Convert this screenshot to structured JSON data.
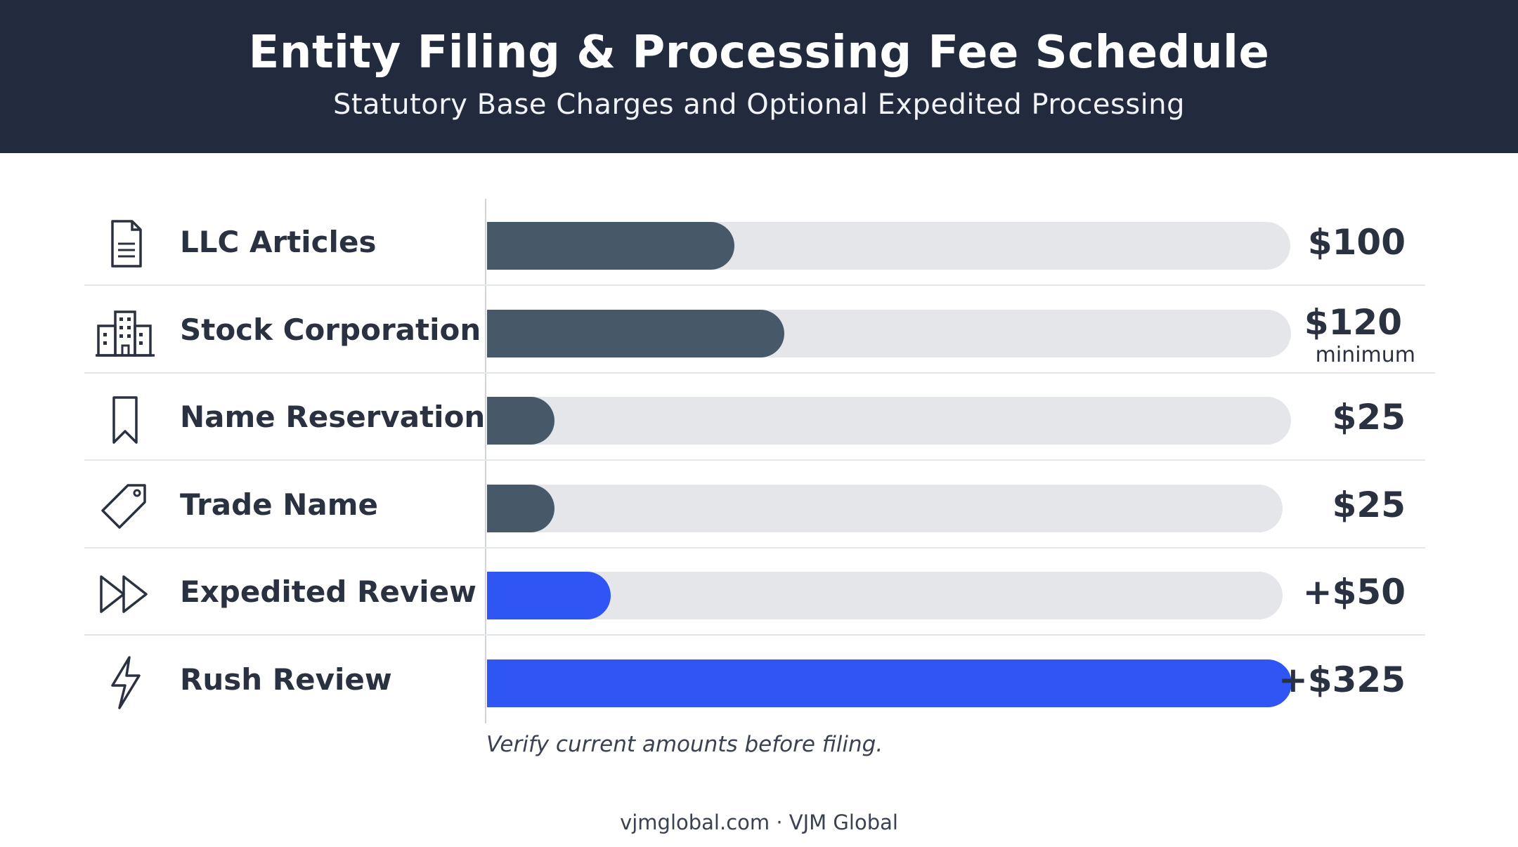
{
  "header": {
    "title": "Entity Filing & Processing Fee Schedule",
    "subtitle": "Statutory Base Charges and Optional Expedited Processing"
  },
  "colors": {
    "header_bg": "#222b3e",
    "base_bar": "#475869",
    "expedited_bar": "#2f55f5",
    "track": "#e4e6ea"
  },
  "chart_data": {
    "type": "bar",
    "orientation": "horizontal",
    "categories": [
      "LLC Articles",
      "Stock Corporation",
      "Name Reservation",
      "Trade Name",
      "Expedited Review",
      "Rush Review"
    ],
    "values": [
      100,
      120,
      25,
      25,
      50,
      325
    ],
    "value_labels": [
      "$100",
      "$120",
      "$25",
      "$25",
      "+$50",
      "+$325"
    ],
    "notes": [
      "",
      "minimum",
      "",
      "",
      "",
      ""
    ],
    "groups": [
      "base",
      "base",
      "base",
      "base",
      "expedited",
      "expedited"
    ],
    "icons": [
      "document-icon",
      "building-icon",
      "bookmark-icon",
      "tag-icon",
      "fast-forward-icon",
      "lightning-icon"
    ],
    "xlim": [
      0,
      325
    ],
    "grid": false,
    "legend": "none"
  },
  "footnote": "Verify current amounts before filing.",
  "credit": "vjmglobal.com · VJM Global"
}
